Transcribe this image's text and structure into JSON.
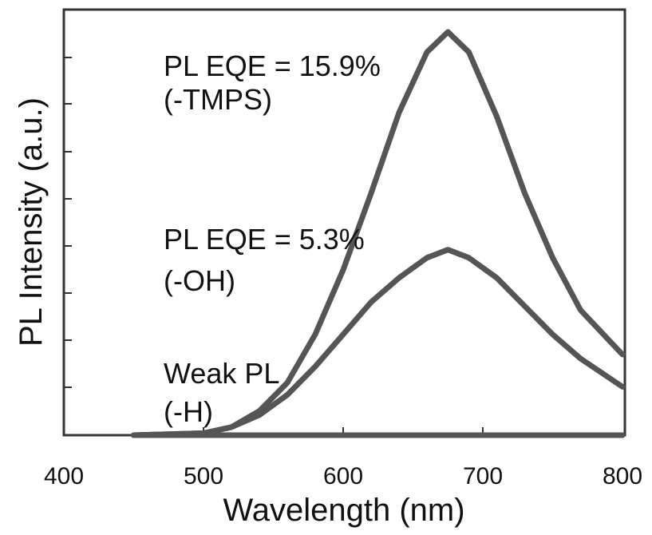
{
  "chart_data": {
    "type": "line",
    "title": "",
    "xlabel": "Wavelength (nm)",
    "ylabel": "PL Intensity (a.u.)",
    "xlim": [
      400,
      800
    ],
    "ylim": [
      0,
      1.0
    ],
    "xticks": [
      400,
      500,
      600,
      700,
      800
    ],
    "y_tick_labels_shown": false,
    "grid": false,
    "legend": "none",
    "line_color": "#555555",
    "series": [
      {
        "x": [
          450,
          500,
          520,
          540,
          560,
          580,
          600,
          620,
          640,
          660,
          675,
          690,
          710,
          730,
          750,
          770,
          800
        ],
        "values": [
          0.0,
          0.005,
          0.02,
          0.06,
          0.13,
          0.25,
          0.41,
          0.6,
          0.8,
          0.95,
          1.0,
          0.95,
          0.79,
          0.6,
          0.44,
          0.31,
          0.2
        ]
      },
      {
        "x": [
          450,
          500,
          520,
          540,
          560,
          580,
          600,
          620,
          640,
          660,
          675,
          690,
          710,
          730,
          750,
          770,
          800
        ],
        "values": [
          0.0,
          0.005,
          0.02,
          0.05,
          0.1,
          0.17,
          0.25,
          0.33,
          0.39,
          0.44,
          0.46,
          0.44,
          0.39,
          0.32,
          0.25,
          0.19,
          0.12
        ]
      },
      {
        "x": [
          450,
          500,
          550,
          600,
          650,
          700,
          750,
          800
        ],
        "values": [
          0.0,
          0.0,
          0.0,
          0.0,
          0.0,
          0.0,
          0.0,
          0.0
        ]
      }
    ],
    "annotations": [
      {
        "line1": "PL EQE = 15.9%",
        "line2": "(-TMPS)",
        "x": 487,
        "y": 0.83
      },
      {
        "line1": "PL EQE = 5.3%",
        "line2": "(-OH)",
        "x": 487,
        "y": 0.41
      },
      {
        "line1": "Weak PL",
        "line2": "(-H)",
        "x": 487,
        "y": 0.13
      }
    ]
  }
}
